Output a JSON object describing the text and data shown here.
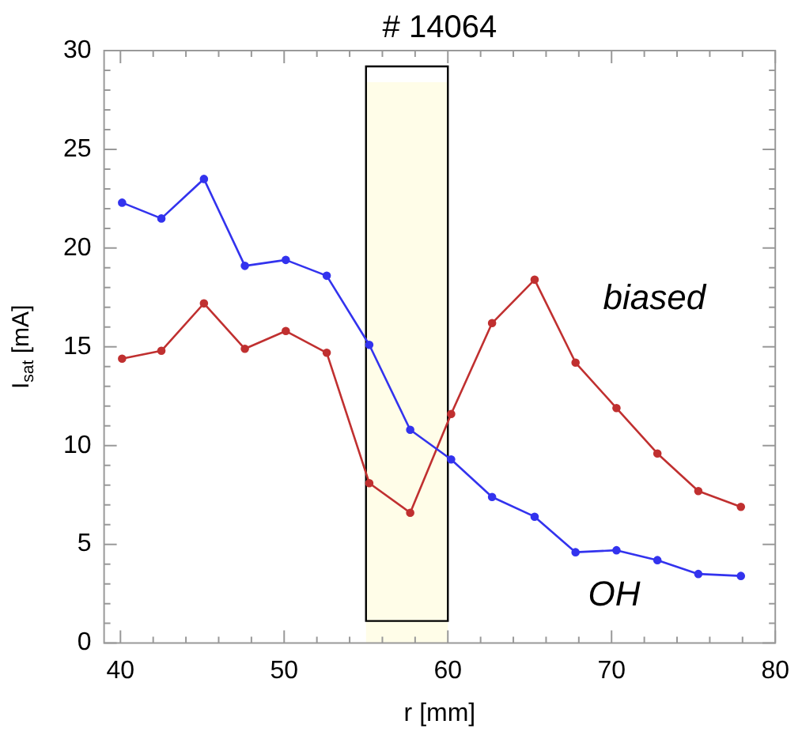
{
  "chart_data": {
    "type": "line",
    "title": "# 14064",
    "xlabel": "r [mm]",
    "ylabel": "I$_{sat}$ [mA]",
    "x": [
      40.1,
      42.5,
      45.1,
      47.6,
      50.1,
      52.6,
      55.2,
      57.7,
      60.2,
      62.7,
      65.3,
      67.8,
      70.3,
      72.8,
      75.3,
      77.9
    ],
    "series": [
      {
        "name": "OH",
        "color": "#3333ee",
        "values": [
          22.3,
          21.5,
          23.5,
          19.1,
          19.4,
          18.6,
          15.1,
          10.8,
          9.3,
          7.4,
          6.4,
          4.6,
          4.7,
          4.2,
          3.5,
          3.4
        ]
      },
      {
        "name": "biased",
        "color": "#c03030",
        "values": [
          14.4,
          14.8,
          17.2,
          14.9,
          15.8,
          14.7,
          8.1,
          6.6,
          11.6,
          16.2,
          18.4,
          14.2,
          11.9,
          9.6,
          7.7,
          6.9
        ]
      }
    ],
    "xlim": [
      39,
      80
    ],
    "xticks": [
      40,
      50,
      60,
      70,
      80
    ],
    "ylim": [
      0,
      30
    ],
    "yticks": [
      0,
      5,
      10,
      15,
      20,
      25,
      30
    ],
    "bands": [
      {
        "axis": "x",
        "from": 55,
        "to": 60,
        "color": "#fffde8"
      }
    ],
    "grid": false,
    "legend": false,
    "marker": "circle",
    "line_style": "solid"
  }
}
